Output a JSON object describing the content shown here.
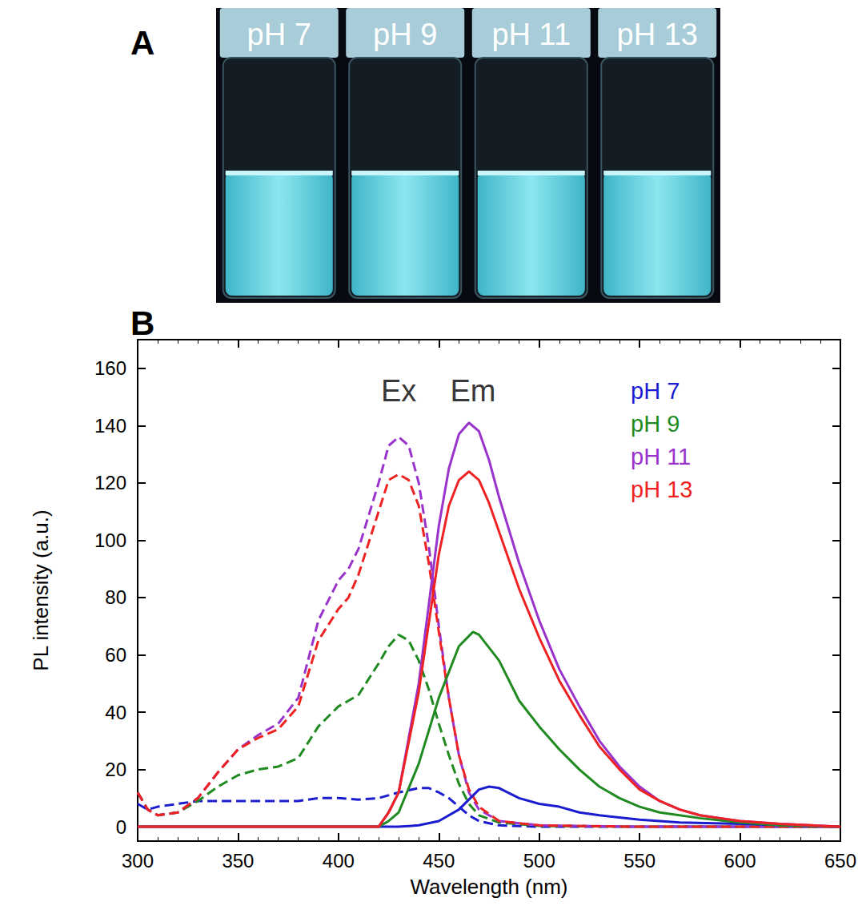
{
  "photo": {
    "letter": "A",
    "labels": [
      "pH 7",
      "pH 9",
      "pH 11",
      "pH 13"
    ]
  },
  "chart_data": {
    "letter": "B",
    "type": "line",
    "x_label": "Wavelength (nm)",
    "y_label": "PL intensity (a.u.)",
    "xlim": [
      300,
      650
    ],
    "xticks": [
      300,
      350,
      400,
      450,
      500,
      550,
      600,
      650
    ],
    "ylim": [
      -5,
      170
    ],
    "yticks": [
      0,
      20,
      40,
      60,
      80,
      100,
      120,
      140,
      160
    ],
    "grid": false,
    "legend": "top-right",
    "annotations": [
      {
        "text": "Ex",
        "x": 430,
        "y": 152
      },
      {
        "text": "Em",
        "x": 467,
        "y": 152
      }
    ],
    "series": [
      {
        "name": "pH 7",
        "color": "#1c1ccf",
        "line_style": "dashed",
        "x": [
          300,
          305,
          310,
          320,
          330,
          340,
          350,
          360,
          370,
          380,
          390,
          400,
          410,
          420,
          430,
          440,
          445,
          450,
          455,
          460,
          465,
          470,
          480,
          500,
          550,
          650
        ],
        "values": [
          8,
          6,
          7,
          8,
          9,
          9,
          9,
          9,
          9,
          9,
          10,
          10,
          9.5,
          10,
          12,
          13.5,
          13.5,
          12,
          10,
          7,
          4,
          2,
          0.5,
          0,
          0,
          0
        ]
      },
      {
        "name": "pH 9",
        "color": "#1f8a1f",
        "line_style": "dashed",
        "x": [
          300,
          305,
          310,
          320,
          330,
          340,
          350,
          360,
          370,
          380,
          390,
          400,
          410,
          420,
          425,
          430,
          435,
          440,
          445,
          450,
          455,
          460,
          465,
          470,
          480,
          500,
          550,
          650
        ],
        "values": [
          12,
          6,
          4,
          5,
          9,
          14,
          18,
          20,
          21,
          24,
          35,
          42,
          46,
          57,
          63,
          67,
          65,
          58,
          48,
          36,
          25,
          15,
          8,
          4,
          1.5,
          0.3,
          0,
          0
        ]
      },
      {
        "name": "pH 11",
        "color": "#9933cc",
        "line_style": "dashed",
        "x": [
          300,
          305,
          310,
          320,
          330,
          340,
          350,
          360,
          370,
          380,
          390,
          400,
          405,
          410,
          420,
          425,
          430,
          435,
          440,
          445,
          450,
          455,
          460,
          465,
          470,
          480,
          500,
          550,
          650
        ],
        "values": [
          12,
          6,
          4,
          5,
          10,
          19,
          27,
          32,
          36,
          45,
          72,
          86,
          90,
          97,
          120,
          133,
          136,
          133,
          120,
          98,
          70,
          45,
          25,
          12,
          6,
          2,
          0.5,
          0,
          0
        ]
      },
      {
        "name": "pH 13",
        "color": "#ee2222",
        "line_style": "dashed",
        "x": [
          300,
          305,
          310,
          320,
          330,
          340,
          350,
          360,
          370,
          380,
          390,
          400,
          405,
          410,
          420,
          425,
          430,
          435,
          440,
          445,
          450,
          455,
          460,
          465,
          470,
          480,
          500,
          550,
          650
        ],
        "values": [
          12,
          6,
          4,
          5,
          10,
          19,
          27,
          31,
          34,
          42,
          65,
          76,
          80,
          88,
          110,
          121,
          123,
          121,
          112,
          92,
          68,
          45,
          25,
          13,
          7,
          2,
          0.5,
          0,
          0
        ]
      },
      {
        "name": "pH 7",
        "color": "#1c1ccf",
        "line_style": "solid",
        "x": [
          300,
          430,
          440,
          450,
          460,
          470,
          475,
          480,
          490,
          500,
          510,
          520,
          530,
          550,
          570,
          600,
          650
        ],
        "values": [
          0,
          0,
          0.5,
          2,
          6,
          13,
          14,
          13.5,
          10,
          8,
          7,
          5,
          4,
          2.5,
          1.5,
          1,
          0
        ]
      },
      {
        "name": "pH 9",
        "color": "#1f8a1f",
        "line_style": "solid",
        "x": [
          300,
          420,
          425,
          430,
          440,
          450,
          460,
          467,
          470,
          480,
          490,
          500,
          510,
          520,
          530,
          540,
          550,
          560,
          580,
          600,
          620,
          650
        ],
        "values": [
          0,
          0,
          2,
          5,
          22,
          45,
          63,
          68,
          67,
          58,
          44,
          35,
          27,
          20,
          14,
          10,
          7,
          5,
          3,
          1.5,
          0.5,
          0
        ]
      },
      {
        "name": "pH 11",
        "color": "#9933cc",
        "line_style": "solid",
        "x": [
          300,
          420,
          425,
          430,
          440,
          450,
          455,
          460,
          465,
          470,
          475,
          480,
          490,
          500,
          510,
          520,
          530,
          540,
          550,
          560,
          570,
          580,
          590,
          600,
          620,
          650
        ],
        "values": [
          0,
          0,
          5,
          12,
          50,
          105,
          125,
          137,
          141,
          138,
          128,
          115,
          92,
          72,
          55,
          42,
          30,
          21,
          14,
          9,
          6,
          4,
          3,
          2,
          1,
          0
        ]
      },
      {
        "name": "pH 13",
        "color": "#ee2222",
        "line_style": "solid",
        "x": [
          300,
          420,
          425,
          430,
          440,
          450,
          455,
          460,
          465,
          470,
          475,
          480,
          490,
          500,
          510,
          520,
          530,
          540,
          550,
          560,
          570,
          580,
          590,
          600,
          620,
          650
        ],
        "values": [
          0,
          0,
          5,
          12,
          47,
          95,
          112,
          121,
          124,
          121,
          113,
          103,
          83,
          66,
          51,
          39,
          28,
          20,
          13,
          9,
          6,
          4,
          3,
          2,
          1,
          0
        ]
      }
    ]
  }
}
